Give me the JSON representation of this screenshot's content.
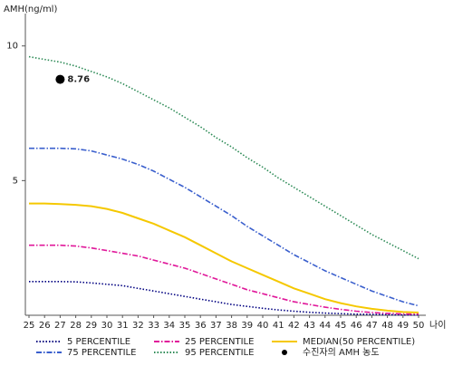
{
  "chart_data": {
    "type": "line",
    "x_label": "나이",
    "y_label": "AMH(ng/ml)",
    "x": [
      25,
      26,
      27,
      28,
      29,
      30,
      31,
      32,
      33,
      34,
      35,
      36,
      37,
      38,
      39,
      40,
      41,
      42,
      43,
      44,
      45,
      46,
      47,
      48,
      49,
      50
    ],
    "xlim": [
      25,
      50
    ],
    "xticks": [
      25,
      26,
      27,
      28,
      29,
      30,
      31,
      32,
      33,
      34,
      35,
      36,
      37,
      38,
      39,
      40,
      41,
      42,
      43,
      44,
      45,
      46,
      47,
      48,
      49,
      50
    ],
    "ylim": [
      0,
      11.1
    ],
    "yticks": [
      5,
      10
    ],
    "series": [
      {
        "name": "5 PERCENTILE",
        "color": "#000080",
        "dash": "dotted",
        "values": [
          1.25,
          1.25,
          1.25,
          1.24,
          1.2,
          1.15,
          1.1,
          1.0,
          0.9,
          0.8,
          0.7,
          0.6,
          0.5,
          0.4,
          0.33,
          0.26,
          0.2,
          0.15,
          0.11,
          0.08,
          0.06,
          0.04,
          0.03,
          0.02,
          0.01,
          0.01
        ]
      },
      {
        "name": "25 PERCENTILE",
        "color": "#e0189a",
        "dash": "dashdot",
        "values": [
          2.6,
          2.6,
          2.6,
          2.57,
          2.5,
          2.4,
          2.3,
          2.2,
          2.05,
          1.9,
          1.75,
          1.55,
          1.35,
          1.15,
          0.95,
          0.8,
          0.65,
          0.5,
          0.4,
          0.3,
          0.22,
          0.15,
          0.1,
          0.07,
          0.05,
          0.04
        ]
      },
      {
        "name": "MEDIAN(50 PERCENTILE)",
        "color": "#f5c800",
        "dash": "solid",
        "values": [
          4.15,
          4.15,
          4.13,
          4.1,
          4.05,
          3.95,
          3.8,
          3.6,
          3.4,
          3.15,
          2.9,
          2.6,
          2.3,
          2.0,
          1.75,
          1.5,
          1.25,
          1.0,
          0.8,
          0.6,
          0.45,
          0.33,
          0.24,
          0.17,
          0.12,
          0.1
        ]
      },
      {
        "name": "75 PERCENTILE",
        "color": "#3a5fcd",
        "dash": "dashdot",
        "values": [
          6.2,
          6.2,
          6.2,
          6.18,
          6.1,
          5.95,
          5.8,
          5.6,
          5.35,
          5.05,
          4.75,
          4.4,
          4.05,
          3.7,
          3.3,
          2.95,
          2.6,
          2.25,
          1.95,
          1.65,
          1.4,
          1.15,
          0.9,
          0.7,
          0.5,
          0.35
        ]
      },
      {
        "name": "95 PERCENTILE",
        "color": "#2e8b57",
        "dash": "dotted",
        "values": [
          9.6,
          9.5,
          9.4,
          9.25,
          9.05,
          8.85,
          8.6,
          8.3,
          8.0,
          7.7,
          7.35,
          7.0,
          6.6,
          6.25,
          5.85,
          5.5,
          5.1,
          4.75,
          4.4,
          4.05,
          3.7,
          3.35,
          3.0,
          2.7,
          2.4,
          2.1
        ]
      }
    ],
    "marker": {
      "name": "수진자의 AMH 농도",
      "x": 27,
      "y": 8.76,
      "color": "#000000"
    }
  }
}
